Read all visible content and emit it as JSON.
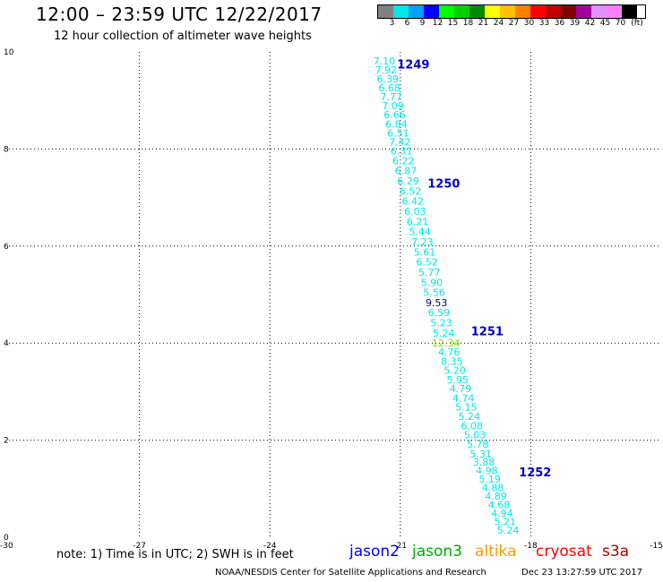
{
  "header": {
    "title": "12:00 – 23:59 UTC 12/22/2017",
    "subtitle": "12 hour collection of altimeter wave heights"
  },
  "legend": {
    "colors": [
      "#808080",
      "#00e8e8",
      "#00a0ff",
      "#0000ff",
      "#00ff00",
      "#00d000",
      "#008800",
      "#ffff00",
      "#ffc000",
      "#ff8000",
      "#ff0000",
      "#c00000",
      "#800000",
      "#a000a0",
      "#e090ff",
      "#ff80ff",
      "#000000"
    ],
    "labels": [
      "3",
      "6",
      "9",
      "12",
      "15",
      "18",
      "21",
      "24",
      "27",
      "30",
      "33",
      "36",
      "39",
      "42",
      "45",
      "70"
    ],
    "unit": "(ft)"
  },
  "map": {
    "x_ticks": [
      "-30",
      "-27",
      "-24",
      "-21",
      "-18",
      "-15"
    ],
    "y_ticks": [
      "10",
      "8",
      "6",
      "4",
      "2",
      "0"
    ],
    "x_range": [
      -30,
      -15
    ],
    "y_range": [
      0,
      10
    ],
    "point_color": "#00e8e8",
    "label_color": "#0000c8",
    "tracks": [
      {
        "label": "1249",
        "label_lat": 9.75,
        "label_lon": -20.7,
        "start_lat": 9.82,
        "start_lon": -21.37,
        "end_lat": 7.96,
        "end_lon": -20.97,
        "values": [
          "7.10",
          "7.92",
          "6.39",
          "6.68",
          "7.77",
          "7.09",
          "6.66",
          "6.84",
          "6.51",
          "7.42",
          "6.31"
        ]
      },
      {
        "label": "1250",
        "label_lat": 7.3,
        "label_lon": -20.0,
        "start_lat": 7.76,
        "start_lon": -20.93,
        "end_lat": 4.0,
        "end_lon": -19.95,
        "values": [
          "6.22",
          "6.87",
          "6.29",
          "6.52",
          "6.42",
          "6.03",
          "6.21",
          "5.44",
          "7.23",
          "5.61",
          "6.52",
          "5.77",
          "5.90",
          "5.56",
          "9.53",
          "6.59",
          "5.23",
          "5.24",
          "12.34"
        ]
      },
      {
        "label": "1251",
        "label_lat": 4.25,
        "label_lon": -19.0,
        "start_lat": 3.82,
        "start_lon": -19.88,
        "end_lat": 1.92,
        "end_lon": -19.22,
        "values": [
          "4.76",
          "8.35",
          "5.20",
          "5.95",
          "4.79",
          "4.74",
          "5.15",
          "5.24",
          "6.08",
          "5.03",
          "5.78"
        ]
      },
      {
        "label": "1252",
        "label_lat": 1.35,
        "label_lon": -17.9,
        "start_lat": 1.72,
        "start_lon": -19.15,
        "end_lat": 0.15,
        "end_lon": -18.52,
        "values": [
          "5.31",
          "3.88",
          "4.98",
          "5.19",
          "4.88",
          "4.89",
          "4.68",
          "4.94",
          "5.21",
          "5.24"
        ]
      }
    ],
    "special_colors": {
      "9.53": "#000080",
      "12.34": "#88dd00"
    }
  },
  "footer": {
    "note": "note:  1) Time is in UTC;  2) SWH is in feet",
    "satellites": [
      {
        "name": "jason2",
        "color": "#0000ff"
      },
      {
        "name": "jason3",
        "color": "#00aa00"
      },
      {
        "name": "altika",
        "color": "#ff9900"
      },
      {
        "name": "cryosat",
        "color": "#ff0000"
      },
      {
        "name": "s3a",
        "color": "#aa0000"
      }
    ],
    "credit": "NOAA/NESDIS Center for Satellite Applications and Research",
    "timestamp": "Dec 23 13:27:59 UTC 2017"
  }
}
